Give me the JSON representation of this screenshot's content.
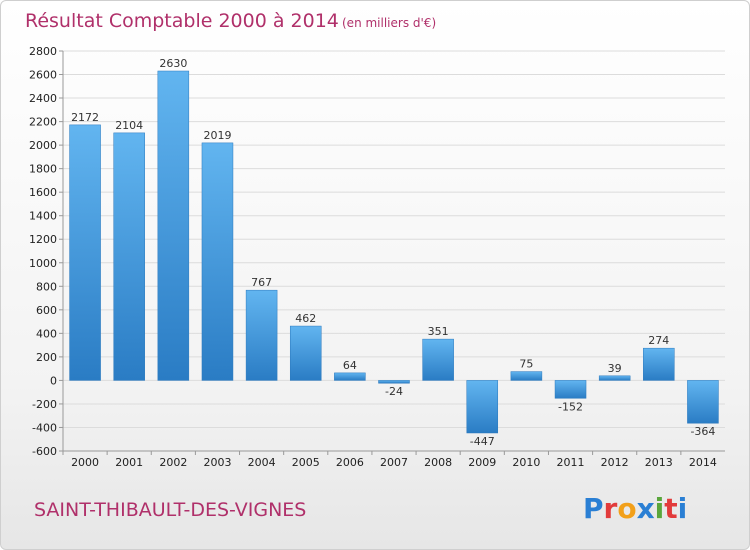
{
  "chart_data": {
    "type": "bar",
    "title": "Résultat Comptable 2000 à 2014",
    "subtitle": "(en milliers d'€)",
    "categories": [
      "2000",
      "2001",
      "2002",
      "2003",
      "2004",
      "2005",
      "2006",
      "2007",
      "2008",
      "2009",
      "2010",
      "2011",
      "2012",
      "2013",
      "2014"
    ],
    "values": [
      2172,
      2104,
      2630,
      2019,
      767,
      462,
      64,
      -24,
      351,
      -447,
      75,
      -152,
      39,
      274,
      -364
    ],
    "ylim": [
      -600,
      2800
    ],
    "yticks": [
      -600,
      -400,
      -200,
      0,
      200,
      400,
      600,
      800,
      1000,
      1200,
      1400,
      1600,
      1800,
      2000,
      2200,
      2400,
      2600,
      2800
    ],
    "grid": true,
    "bar_color": "#3a8fd8"
  },
  "commune": "SAINT-THIBAULT-DES-VIGNES",
  "logo": {
    "text": "Proxiti",
    "colors": [
      "#2a7fd4",
      "#e23b3b",
      "#f2a01a",
      "#2a7fd4",
      "#5aa63c",
      "#e23b3b",
      "#2a7fd4"
    ]
  }
}
